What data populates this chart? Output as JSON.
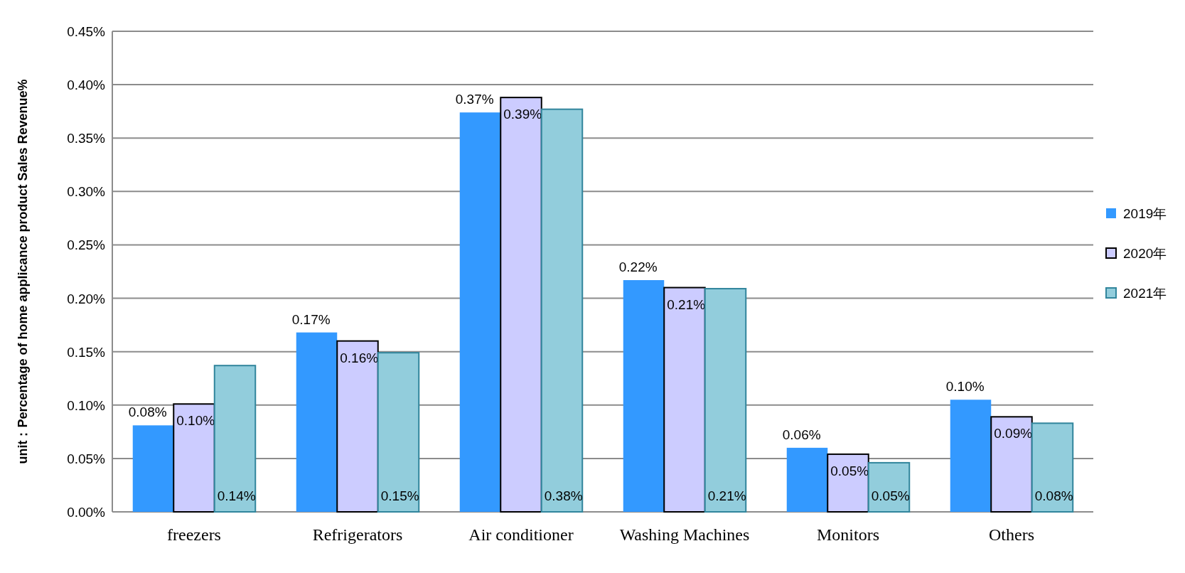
{
  "chart_data": {
    "type": "bar",
    "ylabel": "unit：Percentage of home applicance product Sales Revenue%",
    "categories": [
      "freezers",
      "Refrigerators",
      "Air conditioner",
      "Washing Machines",
      "Monitors",
      "Others"
    ],
    "series": [
      {
        "name": "2019年",
        "color": "#3399ff",
        "values": [
          0.081,
          0.168,
          0.374,
          0.217,
          0.06,
          0.105
        ],
        "value_labels": [
          "0.08%",
          "0.17%",
          "0.37%",
          "0.22%",
          "0.06%",
          "0.10%"
        ]
      },
      {
        "name": "2020年",
        "color": "#ccccff",
        "values": [
          0.101,
          0.16,
          0.388,
          0.21,
          0.054,
          0.089
        ],
        "value_labels": [
          "0.10%",
          "0.16%",
          "0.39%",
          "0.21%",
          "0.05%",
          "0.09%"
        ]
      },
      {
        "name": "2021年",
        "color": "#92cddc",
        "values": [
          0.137,
          0.149,
          0.377,
          0.209,
          0.046,
          0.083
        ],
        "value_labels": [
          "0.14%",
          "0.15%",
          "0.38%",
          "0.21%",
          "0.05%",
          "0.08%"
        ]
      }
    ],
    "ylim": [
      0,
      0.45
    ],
    "yticks": [
      {
        "value": 0,
        "label": "0.00%"
      },
      {
        "value": 0.05,
        "label": "0.05%"
      },
      {
        "value": 0.1,
        "label": "0.10%"
      },
      {
        "value": 0.15,
        "label": "0.15%"
      },
      {
        "value": 0.2,
        "label": "0.20%"
      },
      {
        "value": 0.25,
        "label": "0.25%"
      },
      {
        "value": 0.3,
        "label": "0.30%"
      },
      {
        "value": 0.35,
        "label": "0.35%"
      },
      {
        "value": 0.4,
        "label": "0.40%"
      },
      {
        "value": 0.45,
        "label": "0.45%"
      }
    ],
    "grid": "y",
    "legend": "right"
  }
}
